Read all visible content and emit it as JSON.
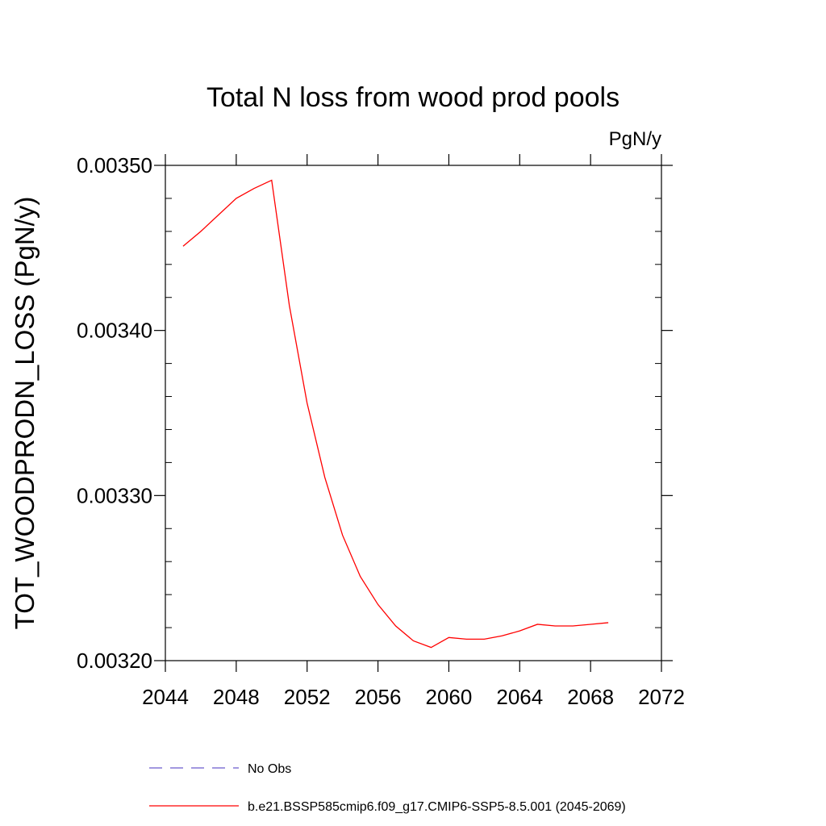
{
  "chart_data": {
    "type": "line",
    "title": "Total N loss from wood prod pools",
    "units_label": "PgN/y",
    "ylabel": "TOT_WOODPRODN_LOSS  (PgN/y)",
    "xlabel": "",
    "xlim": [
      2044,
      2072
    ],
    "ylim": [
      0.0032,
      0.0035
    ],
    "x_ticks": [
      2044,
      2048,
      2052,
      2056,
      2060,
      2064,
      2068,
      2072
    ],
    "x_tick_labels": [
      "2044",
      "2048",
      "2052",
      "2056",
      "2060",
      "2064",
      "2068",
      "2072"
    ],
    "y_ticks": [
      0.0032,
      0.0033,
      0.0034,
      0.0035
    ],
    "y_tick_labels": [
      "0.00320",
      "0.00330",
      "0.00340",
      "0.00350"
    ],
    "grid": false,
    "legend_position": "bottom",
    "series": [
      {
        "name": "No Obs",
        "color": "#6a5acd",
        "dash": "dashed",
        "x": [],
        "y": []
      },
      {
        "name": "b.e21.BSSP585cmip6.f09_g17.CMIP6-SSP5-8.5.001 (2045-2069)",
        "color": "#ff0000",
        "dash": "solid",
        "x": [
          2045,
          2046,
          2047,
          2048,
          2049,
          2050,
          2051,
          2052,
          2053,
          2054,
          2055,
          2056,
          2057,
          2058,
          2059,
          2060,
          2061,
          2062,
          2063,
          2064,
          2065,
          2066,
          2067,
          2068,
          2069
        ],
        "y": [
          0.003451,
          0.00346,
          0.00347,
          0.00348,
          0.003486,
          0.003491,
          0.003415,
          0.003356,
          0.003311,
          0.003276,
          0.003251,
          0.003234,
          0.003221,
          0.003212,
          0.003208,
          0.003214,
          0.003213,
          0.003213,
          0.003215,
          0.003218,
          0.003222,
          0.003221,
          0.003221,
          0.003222,
          0.003223
        ]
      }
    ]
  }
}
